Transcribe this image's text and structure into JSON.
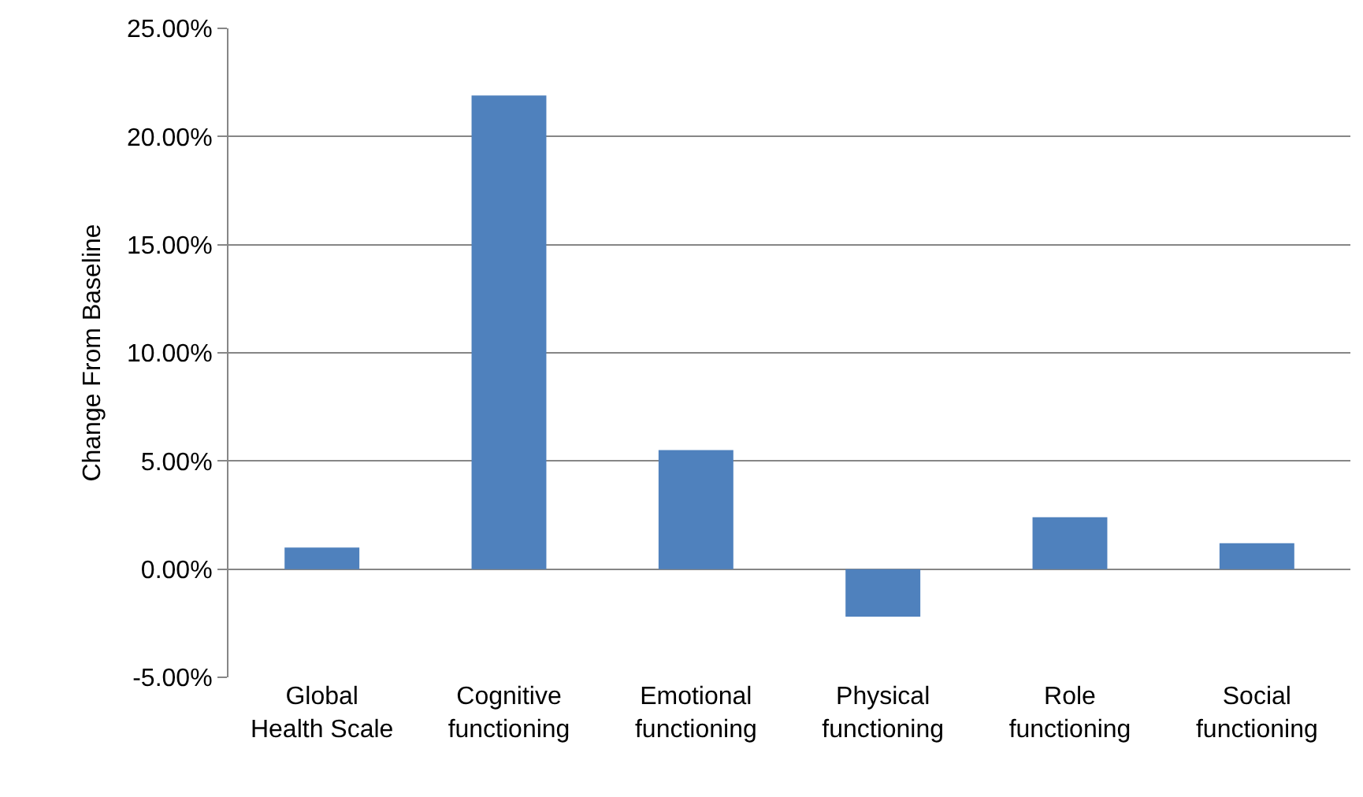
{
  "chart_data": {
    "type": "bar",
    "ylabel": "Change From Baseline",
    "categories": [
      "Global\nHealth Scale",
      "Cognitive\nfunctioning",
      "Emotional\nfunctioning",
      "Physical\nfunctioning",
      "Role\nfunctioning",
      "Social\nfunctioning"
    ],
    "values": [
      1.0,
      21.9,
      5.5,
      -2.2,
      2.4,
      1.2
    ],
    "color": "#4f81bd",
    "ylim": [
      -5,
      25
    ],
    "yticks": [
      {
        "value": -5,
        "label": "-5.00%"
      },
      {
        "value": 0,
        "label": "0.00%"
      },
      {
        "value": 5,
        "label": "5.00%"
      },
      {
        "value": 10,
        "label": "10.00%"
      },
      {
        "value": 15,
        "label": "15.00%"
      },
      {
        "value": 20,
        "label": "20.00%"
      },
      {
        "value": 25,
        "label": "25.00%"
      }
    ],
    "grid": "y"
  }
}
